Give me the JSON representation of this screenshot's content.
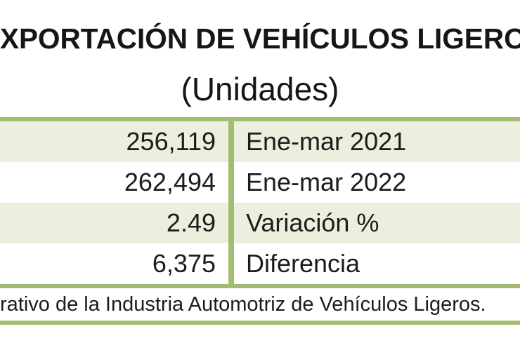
{
  "header": {
    "title": "EXPORTACIÓN DE VEHÍCULOS LIGEROS",
    "subtitle": "(Unidades)"
  },
  "table": {
    "rows": [
      {
        "value": "256,119",
        "label": "Ene-mar 2021"
      },
      {
        "value": "262,494",
        "label": "Ene-mar 2022"
      },
      {
        "value": "2.49",
        "label": "Variación %"
      },
      {
        "value": "6,375",
        "label": "Diferencia"
      }
    ],
    "footnote": "rativo de la Industria Automotriz de Vehículos Ligeros."
  },
  "colors": {
    "table_border_green": "#a2bd71",
    "row_highlight_green": "#eaf0dd",
    "row_white": "#ffffff",
    "text_black": "#1c1c1c"
  }
}
